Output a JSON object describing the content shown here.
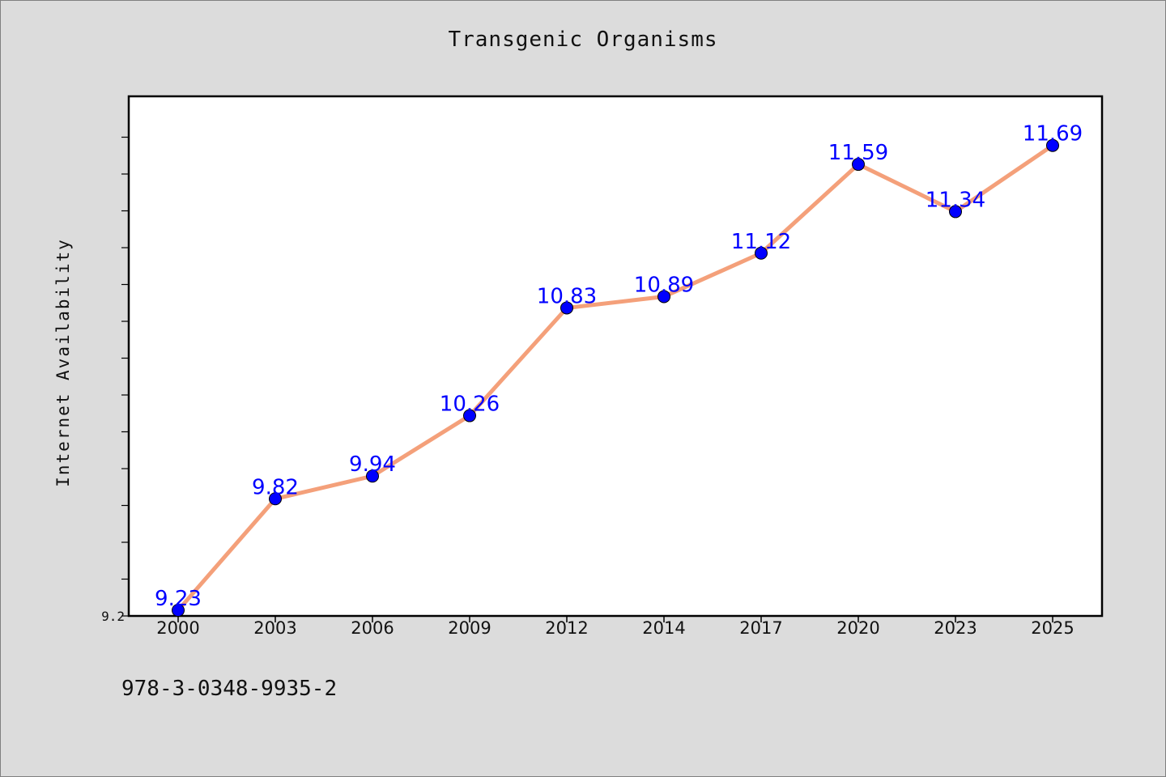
{
  "chart_data": {
    "type": "line",
    "title": "Transgenic Organisms",
    "xlabel": "",
    "ylabel": "Internet Availability",
    "categories": [
      "2000",
      "2003",
      "2006",
      "2009",
      "2012",
      "2014",
      "2017",
      "2020",
      "2023",
      "2025"
    ],
    "series": [
      {
        "values": [
          9.23,
          9.82,
          9.94,
          10.26,
          10.83,
          10.89,
          11.12,
          11.59,
          11.34,
          11.69
        ]
      }
    ],
    "ylim": [
      9.2,
      11.95
    ],
    "y_tick_labels": [
      "9.2"
    ],
    "grid": false,
    "line_color": "#f4a07a",
    "marker_color": "#0000ff",
    "label_color": "#0000ff"
  },
  "footer": {
    "code": "978-3-0348-9935-2"
  }
}
